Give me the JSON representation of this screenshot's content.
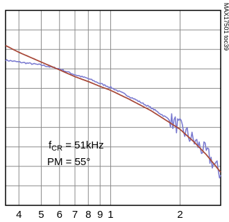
{
  "chart_data": {
    "type": "line",
    "x_scale": "log",
    "grid": true,
    "xlim": [
      35,
      300
    ],
    "ylim": [
      0,
      10
    ],
    "x_ticks": [
      {
        "value": 40,
        "label": "4"
      },
      {
        "value": 50,
        "label": "5"
      },
      {
        "value": 60,
        "label": "6"
      },
      {
        "value": 70,
        "label": "7"
      },
      {
        "value": 80,
        "label": "8"
      },
      {
        "value": 90,
        "label": "9"
      },
      {
        "value": 100,
        "label": "1"
      },
      {
        "value": 200,
        "label": "2"
      }
    ],
    "series": [
      {
        "color": "#7a7ad0",
        "style": "noisy",
        "x": [
          35,
          40,
          50,
          60,
          70,
          80,
          90,
          100,
          120,
          150,
          180,
          200,
          230,
          260,
          300
        ],
        "y": [
          7.45,
          7.35,
          7.2,
          7.0,
          6.7,
          6.5,
          6.25,
          6.05,
          5.6,
          5.0,
          4.4,
          4.0,
          3.3,
          2.7,
          1.6
        ]
      },
      {
        "color": "#a84a3a",
        "style": "smooth",
        "x": [
          35,
          40,
          50,
          60,
          70,
          80,
          90,
          100,
          120,
          150,
          180,
          200,
          230,
          260,
          300
        ],
        "y": [
          8.2,
          7.85,
          7.35,
          6.95,
          6.6,
          6.35,
          6.1,
          5.9,
          5.45,
          4.85,
          4.25,
          3.9,
          3.25,
          2.6,
          1.7
        ]
      }
    ],
    "annotations": [
      {
        "name": "crossover-frequency",
        "main": "f",
        "sub": "CR",
        "rest": " = 51kHz"
      },
      {
        "name": "phase-margin",
        "text": "PM = 55°"
      }
    ]
  },
  "side_label": "MAX17501 toc39",
  "colors": {
    "grid": "#8a8a8a",
    "frame": "#000000"
  }
}
